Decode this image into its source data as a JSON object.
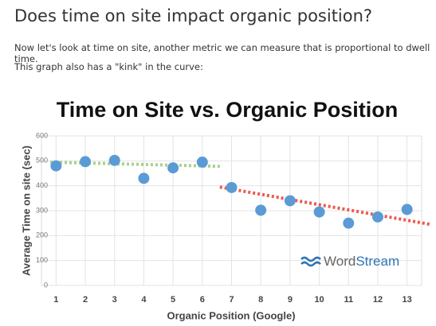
{
  "header": {
    "title": "Does time on site impact organic position?"
  },
  "paragraphs": [
    "Now let's look at time on site, another metric we can measure that is proportional to dwell time.",
    "This graph also has a \"kink\" in the curve:"
  ],
  "chart_data": {
    "type": "scatter",
    "title": "Time on Site vs. Organic Position",
    "x_label": "Organic Position (Google)",
    "y_label": "Average Time on site (sec)",
    "series": [
      {
        "color": "#5b9bd5",
        "x": [
          1,
          2,
          3,
          4,
          5,
          6,
          7,
          8,
          9,
          10,
          11,
          12,
          13
        ],
        "values": [
          480,
          497,
          502,
          430,
          472,
          495,
          393,
          302,
          340,
          295,
          250,
          275,
          305
        ]
      }
    ],
    "trend_lines": [
      {
        "color": "#a9d18e",
        "x": [
          0.8,
          6.6
        ],
        "values": [
          495,
          478
        ]
      },
      {
        "color": "#ea5a4f",
        "x": [
          6.6,
          13.8
        ],
        "values": [
          395,
          245
        ]
      }
    ],
    "xlim": [
      0.5,
      13.5
    ],
    "ylim": [
      0,
      600
    ],
    "xticks": [
      1,
      2,
      3,
      4,
      5,
      6,
      7,
      8,
      9,
      10,
      11,
      12,
      13
    ],
    "yticks": [
      0,
      100,
      200,
      300,
      400,
      500,
      600
    ],
    "grid": true,
    "logo": [
      "Word",
      "Stream"
    ]
  }
}
